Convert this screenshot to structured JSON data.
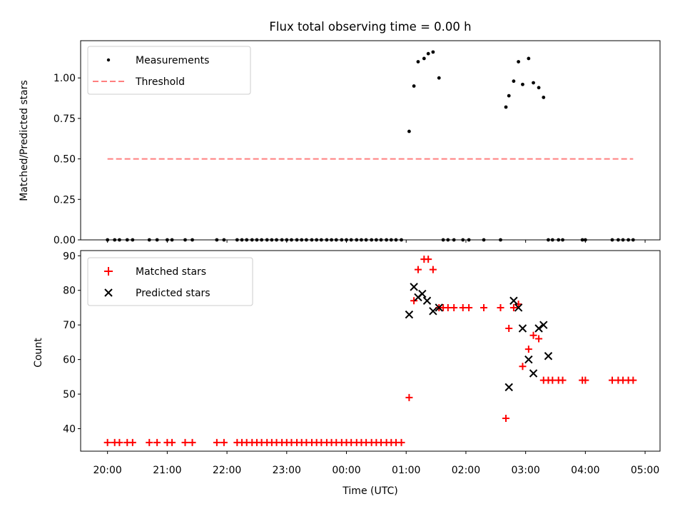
{
  "title": "Flux total observing time = 0.00 h",
  "chart_data": [
    {
      "type": "scatter",
      "ylabel": "Matched/Predicted stars",
      "xlabel": "",
      "x_unit": "hours from 20:00 UTC",
      "xlim": [
        -0.45,
        9.25
      ],
      "ylim": [
        0,
        1.23
      ],
      "yticks": [
        "0.00",
        "0.25",
        "0.50",
        "0.75",
        "1.00"
      ],
      "grid": false,
      "legend_position": "upper-left",
      "series": [
        {
          "name": "Measurements",
          "marker": "dot",
          "color": "#000000",
          "x": [
            0.0,
            0.12,
            0.2,
            0.33,
            0.42,
            0.7,
            0.83,
            1.0,
            1.08,
            1.3,
            1.42,
            1.83,
            1.95,
            2.17,
            2.25,
            2.33,
            2.42,
            2.5,
            2.58,
            2.67,
            2.75,
            2.83,
            2.92,
            3.0,
            3.08,
            3.17,
            3.25,
            3.33,
            3.42,
            3.5,
            3.58,
            3.67,
            3.75,
            3.83,
            3.92,
            4.0,
            4.08,
            4.17,
            4.25,
            4.33,
            4.42,
            4.5,
            4.58,
            4.67,
            4.75,
            4.83,
            4.92,
            5.05,
            5.13,
            5.2,
            5.3,
            5.37,
            5.45,
            5.55,
            5.62,
            5.7,
            5.8,
            5.95,
            6.05,
            6.3,
            6.58,
            6.67,
            6.72,
            6.8,
            6.88,
            6.95,
            7.05,
            7.13,
            7.22,
            7.3,
            7.38,
            7.45,
            7.55,
            7.62,
            7.95,
            8.0,
            8.45,
            8.55,
            8.63,
            8.72,
            8.8
          ],
          "y": [
            0,
            0,
            0,
            0,
            0,
            0,
            0,
            0,
            0,
            0,
            0,
            0,
            0,
            0,
            0,
            0,
            0,
            0,
            0,
            0,
            0,
            0,
            0,
            0,
            0,
            0,
            0,
            0,
            0,
            0,
            0,
            0,
            0,
            0,
            0,
            0,
            0,
            0,
            0,
            0,
            0,
            0,
            0,
            0,
            0,
            0,
            0,
            0.67,
            0.95,
            1.1,
            1.12,
            1.15,
            1.16,
            1.0,
            0,
            0,
            0,
            0,
            0,
            0,
            0,
            0.82,
            0.89,
            0.98,
            1.1,
            0.96,
            1.12,
            0.97,
            0.94,
            0.88,
            0,
            0,
            0,
            0,
            0,
            0,
            0,
            0,
            0,
            0,
            0
          ]
        },
        {
          "name": "Threshold",
          "style": "dashed",
          "color": "#ff7f7f",
          "x": [
            0.0,
            8.8
          ],
          "y": [
            0.5,
            0.5
          ]
        }
      ]
    },
    {
      "type": "scatter",
      "ylabel": "Count",
      "xlabel": "Time (UTC)",
      "x_unit": "hours from 20:00 UTC",
      "xlim": [
        -0.45,
        9.25
      ],
      "ylim": [
        33.5,
        91.5
      ],
      "yticks": [
        "40",
        "50",
        "60",
        "70",
        "80",
        "90"
      ],
      "xticks": [
        "20:00",
        "21:00",
        "22:00",
        "23:00",
        "00:00",
        "01:00",
        "02:00",
        "03:00",
        "04:00",
        "05:00"
      ],
      "grid": false,
      "legend_position": "upper-left",
      "series": [
        {
          "name": "Matched stars",
          "marker": "plus",
          "color": "#ff0000",
          "x": [
            0.0,
            0.12,
            0.2,
            0.33,
            0.42,
            0.7,
            0.83,
            1.0,
            1.08,
            1.3,
            1.42,
            1.83,
            1.95,
            2.17,
            2.25,
            2.33,
            2.42,
            2.5,
            2.58,
            2.67,
            2.75,
            2.83,
            2.92,
            3.0,
            3.08,
            3.17,
            3.25,
            3.33,
            3.42,
            3.5,
            3.58,
            3.67,
            3.75,
            3.83,
            3.92,
            4.0,
            4.08,
            4.17,
            4.25,
            4.33,
            4.42,
            4.5,
            4.58,
            4.67,
            4.75,
            4.83,
            4.92,
            5.05,
            5.13,
            5.2,
            5.3,
            5.37,
            5.45,
            5.55,
            5.62,
            5.7,
            5.8,
            5.95,
            6.05,
            6.3,
            6.58,
            6.67,
            6.72,
            6.8,
            6.88,
            6.95,
            7.05,
            7.13,
            7.22,
            7.3,
            7.38,
            7.45,
            7.55,
            7.62,
            7.95,
            8.0,
            8.45,
            8.55,
            8.63,
            8.72,
            8.8
          ],
          "y": [
            36,
            36,
            36,
            36,
            36,
            36,
            36,
            36,
            36,
            36,
            36,
            36,
            36,
            36,
            36,
            36,
            36,
            36,
            36,
            36,
            36,
            36,
            36,
            36,
            36,
            36,
            36,
            36,
            36,
            36,
            36,
            36,
            36,
            36,
            36,
            36,
            36,
            36,
            36,
            36,
            36,
            36,
            36,
            36,
            36,
            36,
            36,
            49,
            77,
            86,
            89,
            89,
            86,
            75,
            75,
            75,
            75,
            75,
            75,
            75,
            75,
            43,
            69,
            75,
            76,
            58,
            63,
            67,
            66,
            54,
            54,
            54,
            54,
            54,
            54,
            54,
            54,
            54,
            54,
            54,
            54
          ]
        },
        {
          "name": "Predicted stars",
          "marker": "x",
          "color": "#000000",
          "x": [
            5.05,
            5.13,
            5.2,
            5.27,
            5.35,
            5.45,
            5.55,
            6.72,
            6.8,
            6.88,
            6.95,
            7.05,
            7.13,
            7.22,
            7.3,
            7.38
          ],
          "y": [
            73,
            81,
            78,
            79,
            77,
            74,
            75,
            52,
            77,
            75,
            69,
            60,
            56,
            69,
            70,
            61
          ]
        }
      ]
    }
  ]
}
